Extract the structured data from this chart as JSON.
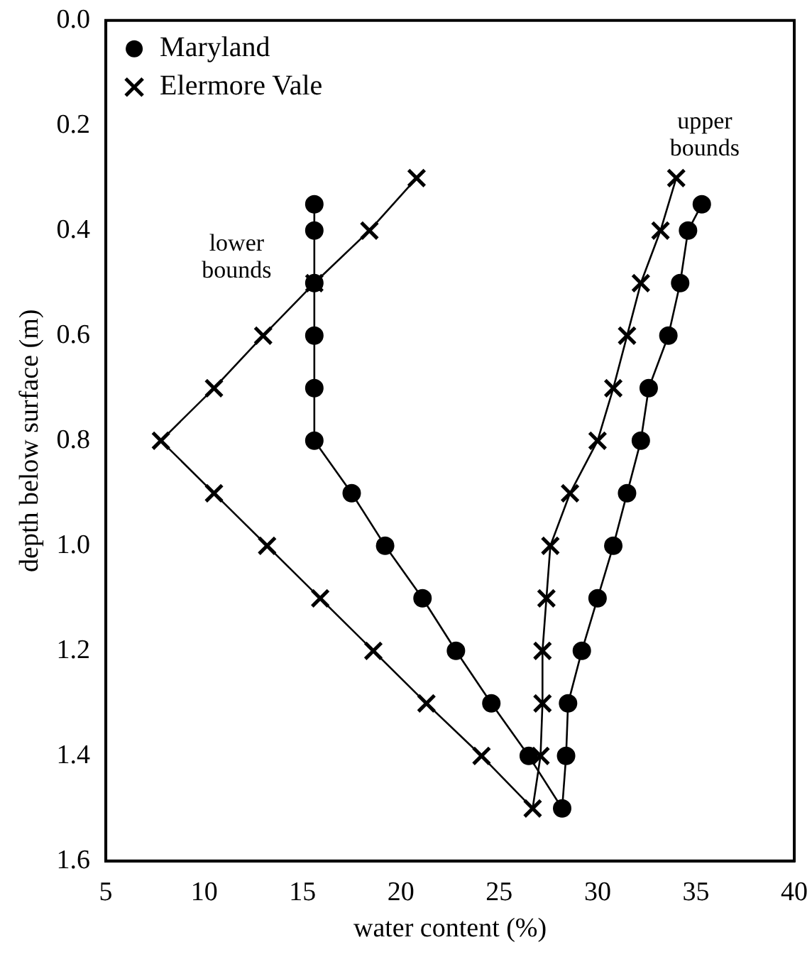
{
  "chart_data": {
    "type": "line",
    "xlabel": "water content (%)",
    "ylabel": "depth below surface (m)",
    "series": [
      {
        "name": "Maryland",
        "color": "#000000",
        "marker": "circle",
        "x": [
          15.6,
          15.6,
          15.6,
          15.6,
          15.6,
          15.6,
          17.5,
          19.2,
          21.1,
          22.8,
          24.6,
          26.5,
          28.2,
          28.4,
          28.5,
          29.2,
          30.0,
          30.8,
          31.5,
          32.2,
          32.6,
          33.6,
          34.2,
          34.6,
          35.3
        ],
        "values": [
          0.35,
          0.4,
          0.5,
          0.6,
          0.7,
          0.8,
          0.9,
          1.0,
          1.1,
          1.2,
          1.3,
          1.4,
          1.5,
          1.4,
          1.3,
          1.2,
          1.1,
          1.0,
          0.9,
          0.8,
          0.7,
          0.6,
          0.5,
          0.4,
          0.35
        ]
      },
      {
        "name": "Elermore Vale",
        "color": "#000000",
        "marker": "cross",
        "x": [
          20.8,
          18.4,
          15.6,
          13.0,
          10.5,
          7.8,
          10.5,
          13.2,
          15.9,
          18.6,
          21.3,
          24.1,
          26.7,
          27.1,
          27.2,
          27.2,
          27.4,
          27.6,
          28.6,
          30.0,
          30.8,
          31.5,
          32.2,
          33.2,
          34.0
        ],
        "values": [
          0.3,
          0.4,
          0.5,
          0.6,
          0.7,
          0.8,
          0.9,
          1.0,
          1.1,
          1.2,
          1.3,
          1.4,
          1.5,
          1.4,
          1.3,
          1.2,
          1.1,
          1.0,
          0.9,
          0.8,
          0.7,
          0.6,
          0.5,
          0.4,
          0.3
        ]
      }
    ],
    "xlim": [
      5,
      40
    ],
    "xticks": [
      5,
      10,
      15,
      20,
      25,
      30,
      35,
      40
    ],
    "ylim": [
      1.6,
      0
    ],
    "yticks": [
      {
        "value": 0,
        "label": "0.0"
      },
      {
        "value": 0.2,
        "label": "0.2"
      },
      {
        "value": 0.4,
        "label": "0.4"
      },
      {
        "value": 0.6,
        "label": "0.6"
      },
      {
        "value": 0.8,
        "label": "0.8"
      },
      {
        "value": 1,
        "label": "1.0"
      },
      {
        "value": 1.2,
        "label": "1.2"
      },
      {
        "value": 1.4,
        "label": "1.4"
      },
      {
        "value": 1.6,
        "label": "1.6"
      }
    ],
    "annotations": [
      "lower bounds",
      "upper bounds"
    ],
    "legend": "top left",
    "grid": false,
    "line_style": "solid"
  }
}
